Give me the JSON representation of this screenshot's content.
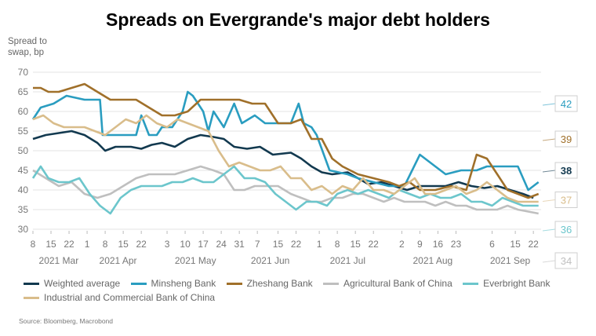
{
  "chart_data": {
    "type": "line",
    "title": "Spreads on Evergrande's major debt holders",
    "ylabel": "Spread to swap, bp",
    "ylim": [
      30,
      70
    ],
    "yticks": [
      30,
      35,
      40,
      45,
      50,
      55,
      60,
      65,
      70
    ],
    "xrange_days": [
      0,
      197
    ],
    "x_tick_labels": [
      "8",
      "15",
      "22",
      "1",
      "8",
      "15",
      "22",
      "3",
      "10",
      "17",
      "24",
      "31",
      "7",
      "15",
      "22",
      "1",
      "8",
      "15",
      "22",
      "2",
      "9",
      "16",
      "23",
      "6",
      "15",
      "22"
    ],
    "x_tick_days": [
      0,
      7,
      14,
      21,
      28,
      35,
      42,
      52,
      59,
      66,
      73,
      80,
      87,
      95,
      102,
      111,
      118,
      125,
      132,
      143,
      150,
      157,
      164,
      178,
      187,
      194
    ],
    "months": [
      {
        "label": "2021 Mar",
        "day": 10
      },
      {
        "label": "2021 Apr",
        "day": 33
      },
      {
        "label": "2021 May",
        "day": 63
      },
      {
        "label": "2021 Jun",
        "day": 92
      },
      {
        "label": "2021 Jul",
        "day": 122
      },
      {
        "label": "2021 Aug",
        "day": 155
      },
      {
        "label": "2021 Sep",
        "day": 185
      }
    ],
    "end_labels": [
      {
        "value": "42",
        "series": "Minsheng Bank",
        "y": 62
      },
      {
        "value": "39",
        "series": "Zheshang Bank",
        "y": 53
      },
      {
        "value": "38",
        "series": "Weighted average",
        "y": 45
      },
      {
        "value": "37",
        "series": "Industrial and Commercial Bank of China",
        "y": 37.5
      },
      {
        "value": "36",
        "series": "Everbright Bank",
        "y": 30
      },
      {
        "value": "34",
        "series": "Agricultural Bank of China",
        "y": 22
      }
    ],
    "series": [
      {
        "name": "Weighted average",
        "color": "#12394f",
        "points": [
          [
            0,
            53
          ],
          [
            5,
            54
          ],
          [
            10,
            54.5
          ],
          [
            15,
            55
          ],
          [
            20,
            54
          ],
          [
            25,
            52
          ],
          [
            28,
            50
          ],
          [
            32,
            51
          ],
          [
            38,
            51
          ],
          [
            42,
            50.5
          ],
          [
            46,
            51.5
          ],
          [
            50,
            52
          ],
          [
            55,
            51
          ],
          [
            60,
            53
          ],
          [
            65,
            54
          ],
          [
            70,
            53.5
          ],
          [
            74,
            53
          ],
          [
            78,
            51
          ],
          [
            83,
            50.5
          ],
          [
            88,
            51
          ],
          [
            93,
            49
          ],
          [
            100,
            49.5
          ],
          [
            104,
            48
          ],
          [
            108,
            46
          ],
          [
            112,
            44.5
          ],
          [
            116,
            44
          ],
          [
            122,
            44.5
          ],
          [
            126,
            43
          ],
          [
            130,
            41.5
          ],
          [
            135,
            42
          ],
          [
            140,
            41
          ],
          [
            145,
            40
          ],
          [
            150,
            41
          ],
          [
            155,
            41
          ],
          [
            160,
            41
          ],
          [
            165,
            42
          ],
          [
            170,
            41
          ],
          [
            175,
            40.5
          ],
          [
            180,
            41
          ],
          [
            185,
            40
          ],
          [
            190,
            39
          ],
          [
            194,
            38
          ]
        ]
      },
      {
        "name": "Minsheng Bank",
        "color": "#2a9dc0",
        "points": [
          [
            0,
            58
          ],
          [
            3,
            61
          ],
          [
            8,
            62
          ],
          [
            13,
            64
          ],
          [
            20,
            63
          ],
          [
            26,
            63
          ],
          [
            27,
            54
          ],
          [
            35,
            54
          ],
          [
            40,
            54
          ],
          [
            42,
            59
          ],
          [
            45,
            54
          ],
          [
            48,
            54
          ],
          [
            50,
            56
          ],
          [
            54,
            56
          ],
          [
            58,
            60
          ],
          [
            60,
            65
          ],
          [
            62,
            64
          ],
          [
            66,
            60
          ],
          [
            68,
            55
          ],
          [
            70,
            60
          ],
          [
            74,
            56
          ],
          [
            78,
            62
          ],
          [
            81,
            57
          ],
          [
            86,
            59
          ],
          [
            90,
            57
          ],
          [
            95,
            57
          ],
          [
            100,
            57
          ],
          [
            103,
            62
          ],
          [
            105,
            57
          ],
          [
            108,
            56
          ],
          [
            110,
            54
          ],
          [
            115,
            45
          ],
          [
            122,
            44
          ],
          [
            126,
            43
          ],
          [
            132,
            42
          ],
          [
            138,
            41
          ],
          [
            144,
            41
          ],
          [
            150,
            49
          ],
          [
            156,
            46
          ],
          [
            160,
            44
          ],
          [
            166,
            45
          ],
          [
            172,
            45
          ],
          [
            176,
            46
          ],
          [
            182,
            46
          ],
          [
            188,
            46
          ],
          [
            192,
            40
          ],
          [
            196,
            42
          ]
        ]
      },
      {
        "name": "Zheshang Bank",
        "color": "#a0702a",
        "points": [
          [
            0,
            66
          ],
          [
            3,
            66
          ],
          [
            6,
            65
          ],
          [
            10,
            65
          ],
          [
            15,
            66
          ],
          [
            20,
            67
          ],
          [
            25,
            65
          ],
          [
            30,
            63
          ],
          [
            35,
            63
          ],
          [
            40,
            63
          ],
          [
            45,
            61
          ],
          [
            50,
            59
          ],
          [
            55,
            59
          ],
          [
            60,
            60
          ],
          [
            65,
            63
          ],
          [
            70,
            63
          ],
          [
            75,
            63
          ],
          [
            80,
            63
          ],
          [
            85,
            62
          ],
          [
            90,
            62
          ],
          [
            95,
            57
          ],
          [
            100,
            57
          ],
          [
            104,
            58
          ],
          [
            108,
            53
          ],
          [
            112,
            53
          ],
          [
            116,
            48
          ],
          [
            120,
            46
          ],
          [
            126,
            44
          ],
          [
            132,
            43
          ],
          [
            138,
            42
          ],
          [
            142,
            41
          ],
          [
            146,
            42
          ],
          [
            150,
            40
          ],
          [
            156,
            40
          ],
          [
            162,
            41
          ],
          [
            168,
            40
          ],
          [
            172,
            49
          ],
          [
            176,
            48
          ],
          [
            180,
            44
          ],
          [
            184,
            40
          ],
          [
            188,
            39
          ],
          [
            192,
            38
          ],
          [
            196,
            39
          ]
        ]
      },
      {
        "name": "Agricultural Bank of China",
        "color": "#bfbfbf",
        "points": [
          [
            0,
            45
          ],
          [
            5,
            43
          ],
          [
            10,
            41
          ],
          [
            15,
            42
          ],
          [
            20,
            39
          ],
          [
            25,
            38
          ],
          [
            30,
            39
          ],
          [
            35,
            41
          ],
          [
            40,
            43
          ],
          [
            45,
            44
          ],
          [
            50,
            44
          ],
          [
            55,
            44
          ],
          [
            60,
            45
          ],
          [
            65,
            46
          ],
          [
            70,
            45
          ],
          [
            74,
            44
          ],
          [
            78,
            40
          ],
          [
            82,
            40
          ],
          [
            86,
            41
          ],
          [
            90,
            41
          ],
          [
            95,
            41
          ],
          [
            100,
            39
          ],
          [
            104,
            38
          ],
          [
            108,
            37
          ],
          [
            112,
            37
          ],
          [
            116,
            38
          ],
          [
            120,
            38
          ],
          [
            124,
            39
          ],
          [
            128,
            39
          ],
          [
            132,
            38
          ],
          [
            136,
            37
          ],
          [
            140,
            38
          ],
          [
            144,
            37
          ],
          [
            148,
            37
          ],
          [
            152,
            37
          ],
          [
            156,
            36
          ],
          [
            160,
            37
          ],
          [
            164,
            36
          ],
          [
            168,
            36
          ],
          [
            172,
            35
          ],
          [
            176,
            35
          ],
          [
            180,
            35
          ],
          [
            184,
            36
          ],
          [
            188,
            35
          ],
          [
            192,
            34.5
          ],
          [
            196,
            34
          ]
        ]
      },
      {
        "name": "Everbright Bank",
        "color": "#6cc6cc",
        "points": [
          [
            0,
            43
          ],
          [
            3,
            46
          ],
          [
            6,
            43
          ],
          [
            10,
            42
          ],
          [
            14,
            42
          ],
          [
            18,
            43
          ],
          [
            22,
            39
          ],
          [
            26,
            36
          ],
          [
            30,
            34
          ],
          [
            34,
            38
          ],
          [
            38,
            40
          ],
          [
            42,
            41
          ],
          [
            46,
            41
          ],
          [
            50,
            41
          ],
          [
            54,
            42
          ],
          [
            58,
            42
          ],
          [
            62,
            43
          ],
          [
            66,
            42
          ],
          [
            70,
            42
          ],
          [
            74,
            44
          ],
          [
            78,
            46
          ],
          [
            82,
            43
          ],
          [
            86,
            43
          ],
          [
            90,
            42
          ],
          [
            94,
            39
          ],
          [
            98,
            37
          ],
          [
            102,
            35
          ],
          [
            106,
            37
          ],
          [
            110,
            37
          ],
          [
            114,
            36
          ],
          [
            118,
            39
          ],
          [
            122,
            40
          ],
          [
            126,
            39
          ],
          [
            130,
            40
          ],
          [
            134,
            39
          ],
          [
            138,
            38
          ],
          [
            142,
            40
          ],
          [
            146,
            39
          ],
          [
            150,
            38
          ],
          [
            154,
            39
          ],
          [
            158,
            38
          ],
          [
            162,
            38
          ],
          [
            166,
            39
          ],
          [
            170,
            37
          ],
          [
            174,
            37
          ],
          [
            178,
            36
          ],
          [
            182,
            38
          ],
          [
            186,
            37
          ],
          [
            190,
            36
          ],
          [
            194,
            36
          ],
          [
            196,
            36
          ]
        ]
      },
      {
        "name": "Industrial and Commercial Bank of China",
        "color": "#d9bd8b",
        "points": [
          [
            0,
            58
          ],
          [
            4,
            59
          ],
          [
            8,
            57
          ],
          [
            12,
            56
          ],
          [
            16,
            56
          ],
          [
            20,
            56
          ],
          [
            24,
            55
          ],
          [
            28,
            54
          ],
          [
            32,
            56
          ],
          [
            36,
            58
          ],
          [
            40,
            57
          ],
          [
            44,
            59
          ],
          [
            48,
            57
          ],
          [
            52,
            56
          ],
          [
            56,
            58
          ],
          [
            60,
            57
          ],
          [
            64,
            56
          ],
          [
            68,
            55
          ],
          [
            72,
            50
          ],
          [
            76,
            46
          ],
          [
            80,
            47
          ],
          [
            84,
            46
          ],
          [
            88,
            45
          ],
          [
            92,
            45
          ],
          [
            96,
            46
          ],
          [
            100,
            43
          ],
          [
            104,
            43
          ],
          [
            108,
            40
          ],
          [
            112,
            41
          ],
          [
            116,
            39
          ],
          [
            120,
            41
          ],
          [
            124,
            40
          ],
          [
            128,
            43
          ],
          [
            132,
            40
          ],
          [
            136,
            40
          ],
          [
            140,
            39
          ],
          [
            144,
            41
          ],
          [
            148,
            43
          ],
          [
            152,
            39
          ],
          [
            156,
            39
          ],
          [
            160,
            40
          ],
          [
            164,
            41
          ],
          [
            168,
            39
          ],
          [
            172,
            40
          ],
          [
            176,
            42
          ],
          [
            180,
            40
          ],
          [
            184,
            38
          ],
          [
            188,
            37
          ],
          [
            192,
            37
          ],
          [
            196,
            37
          ]
        ]
      }
    ]
  },
  "legend": {
    "items": [
      {
        "label": "Weighted average",
        "color": "#12394f"
      },
      {
        "label": "Minsheng Bank",
        "color": "#2a9dc0"
      },
      {
        "label": "Zheshang Bank",
        "color": "#a0702a"
      },
      {
        "label": "Agricultural Bank of China",
        "color": "#bfbfbf"
      },
      {
        "label": "Everbright Bank",
        "color": "#6cc6cc"
      },
      {
        "label": "Industrial and Commercial Bank of China",
        "color": "#d9bd8b"
      }
    ]
  },
  "source": "Source: Bloomberg, Macrobond",
  "ylabel_lines": [
    "Spread to",
    "swap, bp"
  ]
}
